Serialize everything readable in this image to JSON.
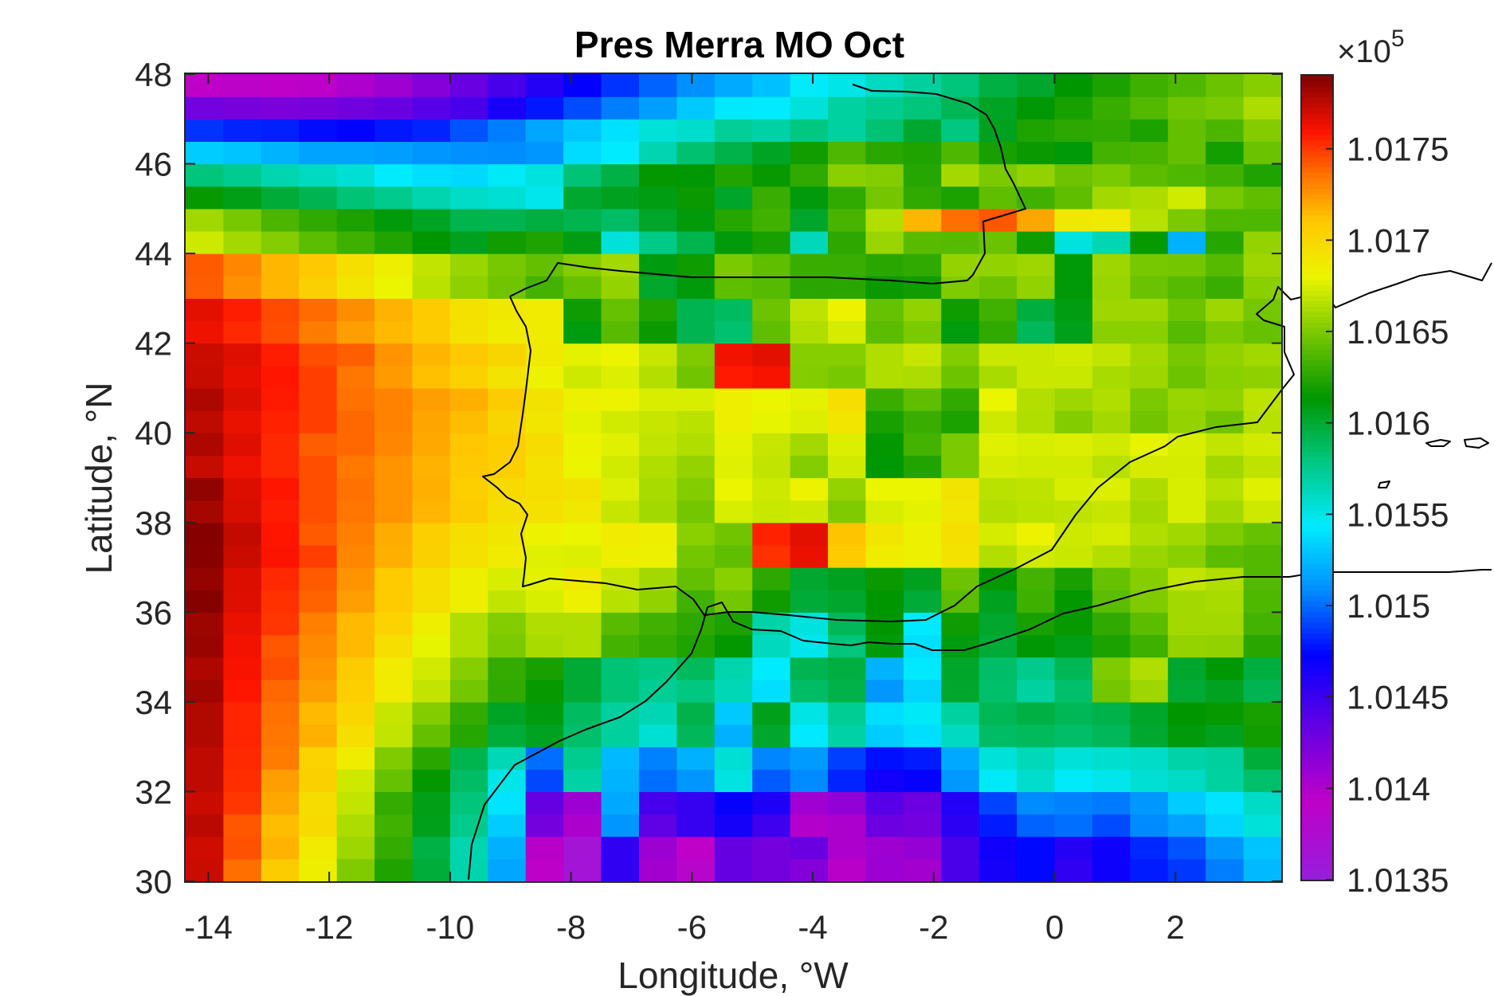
{
  "chart_data": {
    "type": "heatmap",
    "title": "Pres Merra MO Oct",
    "xlabel": "Longitude, °W",
    "ylabel": "Latitude, °N",
    "xlim": [
      -14.375,
      3.75
    ],
    "ylim": [
      30,
      48
    ],
    "grid": false,
    "xticks": [
      -14,
      -12,
      -10,
      -8,
      -6,
      -4,
      -2,
      0,
      2
    ],
    "xtick_labels": [
      "-14",
      "-12",
      "-10",
      "-8",
      "-6",
      "-4",
      "-2",
      "0",
      "2"
    ],
    "yticks": [
      30,
      32,
      34,
      36,
      38,
      40,
      42,
      44,
      46,
      48
    ],
    "ytick_labels": [
      "30",
      "32",
      "34",
      "36",
      "38",
      "40",
      "42",
      "44",
      "46",
      "48"
    ],
    "colorbar": {
      "colormap": "jet-like (purple-blue-cyan-green-yellow-red-dark red)",
      "range": [
        1.0135,
        1.0179
      ],
      "ticks": [
        1.0135,
        1.014,
        1.0145,
        1.015,
        1.0155,
        1.016,
        1.0165,
        1.017,
        1.0175
      ],
      "tick_labels": [
        "1.0135",
        "1.014",
        "1.0145",
        "1.015",
        "1.0155",
        "1.016",
        "1.0165",
        "1.017",
        "1.0175"
      ],
      "multiplier_base": "×10",
      "multiplier_exp": "5"
    },
    "grid_spec": {
      "lon_start": -14.375,
      "lon_step": 0.625,
      "ncols": 29,
      "lat_start": 30,
      "lat_step": 0.5,
      "nrows": 36
    },
    "values_rows_south_to_north": [
      [
        1.01772,
        1.01737,
        1.01708,
        1.01684,
        1.01651,
        1.01623,
        1.01598,
        1.01567,
        1.01518,
        1.01393,
        1.01364,
        1.01455,
        1.01406,
        1.01387,
        1.01433,
        1.01426,
        1.0142,
        1.01396,
        1.01409,
        1.01406,
        1.01444,
        1.01465,
        1.01475,
        1.01455,
        1.01468,
        1.0148,
        1.01487,
        1.01505,
        1.01525
      ],
      [
        1.01771,
        1.01744,
        1.01717,
        1.01687,
        1.01659,
        1.01629,
        1.01595,
        1.01566,
        1.01522,
        1.01396,
        1.01365,
        1.01455,
        1.01409,
        1.01394,
        1.01433,
        1.01426,
        1.01431,
        1.01401,
        1.01408,
        1.01412,
        1.01444,
        1.01467,
        1.01475,
        1.01459,
        1.01468,
        1.01483,
        1.01494,
        1.01513,
        1.01529
      ],
      [
        1.01776,
        1.01743,
        1.01714,
        1.01698,
        1.01663,
        1.01633,
        1.01607,
        1.01576,
        1.01532,
        1.01426,
        1.01402,
        1.01512,
        1.01436,
        1.01452,
        1.01465,
        1.01449,
        1.01399,
        1.01402,
        1.0143,
        1.01427,
        1.01456,
        1.0148,
        1.01498,
        1.01501,
        1.01492,
        1.01508,
        1.01516,
        1.01535,
        1.01554
      ],
      [
        1.01772,
        1.01751,
        1.0172,
        1.01697,
        1.01669,
        1.01629,
        1.01608,
        1.01581,
        1.01541,
        1.01433,
        1.01409,
        1.01519,
        1.01446,
        1.01452,
        1.01471,
        1.01461,
        1.01407,
        1.01414,
        1.01439,
        1.0143,
        1.0146,
        1.0149,
        1.01508,
        1.01506,
        1.01504,
        1.01513,
        1.01532,
        1.01541,
        1.0156
      ],
      [
        1.01775,
        1.01753,
        1.01723,
        1.01705,
        1.01672,
        1.01644,
        1.01615,
        1.01587,
        1.0155,
        1.01491,
        1.01569,
        1.01523,
        1.01501,
        1.01512,
        1.01552,
        1.01496,
        1.01508,
        1.01482,
        1.01467,
        1.01471,
        1.01513,
        1.01546,
        1.01558,
        1.01545,
        1.01549,
        1.01556,
        1.0156,
        1.0157,
        1.01585
      ],
      [
        1.01775,
        1.01754,
        1.01733,
        1.01703,
        1.01686,
        1.01651,
        1.01626,
        1.01593,
        1.01564,
        1.01501,
        1.01575,
        1.01525,
        1.01506,
        1.01522,
        1.01556,
        1.01507,
        1.01514,
        1.01489,
        1.01477,
        1.0148,
        1.01519,
        1.01554,
        1.01563,
        1.01554,
        1.01557,
        1.01559,
        1.01568,
        1.01571,
        1.01598
      ],
      [
        1.01778,
        1.01755,
        1.01735,
        1.01718,
        1.01696,
        1.01669,
        1.01643,
        1.01625,
        1.01598,
        1.01605,
        1.01585,
        1.01571,
        1.01556,
        1.0159,
        1.01522,
        1.01602,
        1.01543,
        1.01569,
        1.01532,
        1.01539,
        1.01561,
        1.01587,
        1.01589,
        1.01586,
        1.0159,
        1.01601,
        1.01611,
        1.01606,
        1.01619
      ],
      [
        1.01778,
        1.01755,
        1.01736,
        1.01715,
        1.01701,
        1.0167,
        1.01652,
        1.01629,
        1.01604,
        1.0161,
        1.01588,
        1.01571,
        1.01565,
        1.01594,
        1.01531,
        1.01607,
        1.01551,
        1.01574,
        1.01539,
        1.01546,
        1.0157,
        1.01591,
        1.01596,
        1.01591,
        1.01594,
        1.01603,
        1.01614,
        1.01616,
        1.01621
      ],
      [
        1.01782,
        1.01759,
        1.01739,
        1.01723,
        1.01707,
        1.01687,
        1.01669,
        1.01648,
        1.01628,
        1.01616,
        1.016,
        1.01582,
        1.01574,
        1.01579,
        1.01564,
        1.01539,
        1.01587,
        1.01594,
        1.01513,
        1.01535,
        1.01602,
        1.01585,
        1.0157,
        1.01585,
        1.01648,
        1.01659,
        1.016,
        1.01605,
        1.01592
      ],
      [
        1.01779,
        1.01761,
        1.01745,
        1.01726,
        1.01708,
        1.01687,
        1.01673,
        1.01653,
        1.01629,
        1.01621,
        1.016,
        1.01582,
        1.01578,
        1.01589,
        1.01567,
        1.01544,
        1.01592,
        1.01597,
        1.01523,
        1.01543,
        1.01603,
        1.01586,
        1.01576,
        1.01591,
        1.01651,
        1.01664,
        1.01602,
        1.01613,
        1.01597
      ],
      [
        1.01784,
        1.01762,
        1.01743,
        1.01729,
        1.01715,
        1.01696,
        1.01679,
        1.01664,
        1.0165,
        1.01662,
        1.01664,
        1.01634,
        1.01629,
        1.01623,
        1.01615,
        1.01562,
        1.01549,
        1.01581,
        1.01611,
        1.01539,
        1.0161,
        1.01599,
        1.01613,
        1.01608,
        1.01622,
        1.01632,
        1.01657,
        1.01656,
        1.01626
      ],
      [
        1.01783,
        1.01764,
        1.01751,
        1.01732,
        1.01715,
        1.01703,
        1.01685,
        1.01664,
        1.01652,
        1.01664,
        1.01664,
        1.0164,
        1.01633,
        1.01627,
        1.01622,
        1.01568,
        1.01553,
        1.0159,
        1.01614,
        1.01543,
        1.01618,
        1.01602,
        1.01621,
        1.01616,
        1.01628,
        1.01641,
        1.01661,
        1.01661,
        1.01634
      ],
      [
        1.01789,
        1.01767,
        1.01752,
        1.0174,
        1.01723,
        1.01709,
        1.01695,
        1.01684,
        1.01669,
        1.01675,
        1.01683,
        1.01666,
        1.01656,
        1.01633,
        1.01648,
        1.01618,
        1.01599,
        1.01602,
        1.01614,
        1.01599,
        1.01641,
        1.01606,
        1.01632,
        1.01615,
        1.01641,
        1.01651,
        1.01661,
        1.01662,
        1.01637
      ],
      [
        1.01785,
        1.01768,
        1.01754,
        1.01742,
        1.01726,
        1.01709,
        1.01696,
        1.01685,
        1.01675,
        1.01678,
        1.01688,
        1.0167,
        1.01661,
        1.01643,
        1.01654,
        1.01627,
        1.01601,
        1.01606,
        1.01617,
        1.01606,
        1.01646,
        1.01615,
        1.01634,
        1.01621,
        1.01644,
        1.01653,
        1.01669,
        1.01664,
        1.01638
      ],
      [
        1.01788,
        1.01772,
        1.0176,
        1.01749,
        1.0173,
        1.01718,
        1.01705,
        1.01694,
        1.01687,
        1.01677,
        1.01676,
        1.01684,
        1.01683,
        1.01648,
        1.01642,
        1.01752,
        1.01764,
        1.01709,
        1.01686,
        1.01683,
        1.01693,
        1.01665,
        1.01673,
        1.01671,
        1.01665,
        1.01658,
        1.01654,
        1.01641,
        1.01638
      ],
      [
        1.01789,
        1.01774,
        1.01759,
        1.01742,
        1.01732,
        1.01719,
        1.01706,
        1.01696,
        1.0169,
        1.01682,
        1.0168,
        1.01687,
        1.01684,
        1.01654,
        1.01647,
        1.01756,
        1.01766,
        1.01712,
        1.0169,
        1.01683,
        1.01695,
        1.01674,
        1.01682,
        1.01672,
        1.01674,
        1.01664,
        1.0166,
        1.01651,
        1.01644
      ],
      [
        1.01781,
        1.01769,
        1.01757,
        1.01745,
        1.01735,
        1.01726,
        1.01716,
        1.01708,
        1.01695,
        1.01694,
        1.01689,
        1.0167,
        1.01661,
        1.01648,
        1.01675,
        1.01671,
        1.01672,
        1.01651,
        1.01675,
        1.01678,
        1.0169,
        1.01665,
        1.01667,
        1.01668,
        1.0167,
        1.01661,
        1.01675,
        1.01661,
        1.01672
      ],
      [
        1.01786,
        1.01768,
        1.01759,
        1.01745,
        1.01736,
        1.01726,
        1.01718,
        1.01707,
        1.01698,
        1.01695,
        1.01693,
        1.01676,
        1.01662,
        1.01652,
        1.01681,
        1.01672,
        1.01682,
        1.01657,
        1.0168,
        1.0168,
        1.01692,
        1.01667,
        1.01668,
        1.01675,
        1.01676,
        1.01663,
        1.01675,
        1.01666,
        1.01677
      ],
      [
        1.01773,
        1.01763,
        1.01754,
        1.01745,
        1.01734,
        1.01726,
        1.01717,
        1.0171,
        1.01706,
        1.01694,
        1.0168,
        1.01673,
        1.01664,
        1.01657,
        1.01677,
        1.01669,
        1.01652,
        1.01673,
        1.01613,
        1.01624,
        1.0165,
        1.01674,
        1.01673,
        1.01673,
        1.01666,
        1.01674,
        1.01674,
        1.0166,
        1.01668
      ],
      [
        1.01779,
        1.01767,
        1.01754,
        1.01741,
        1.01739,
        1.0173,
        1.0172,
        1.01711,
        1.01707,
        1.01697,
        1.01682,
        1.01677,
        1.01669,
        1.01664,
        1.01678,
        1.0167,
        1.01661,
        1.01676,
        1.01615,
        1.01634,
        1.0165,
        1.01677,
        1.01675,
        1.01676,
        1.01673,
        1.01679,
        1.01675,
        1.01669,
        1.01673
      ],
      [
        1.01775,
        1.01764,
        1.01756,
        1.01749,
        1.01739,
        1.01731,
        1.01721,
        1.01714,
        1.01702,
        1.0169,
        1.01678,
        1.01673,
        1.0167,
        1.01667,
        1.01684,
        1.01679,
        1.01676,
        1.01691,
        1.01621,
        1.01631,
        1.01622,
        1.01672,
        1.01664,
        1.01652,
        1.01661,
        1.01647,
        1.01657,
        1.01647,
        1.01666
      ],
      [
        1.01779,
        1.01768,
        1.01758,
        1.01749,
        1.01736,
        1.01731,
        1.01723,
        1.01718,
        1.01708,
        1.01693,
        1.01683,
        1.01682,
        1.01675,
        1.01675,
        1.01684,
        1.0168,
        1.01678,
        1.01696,
        1.01631,
        1.01642,
        1.01628,
        1.0168,
        1.01665,
        1.01659,
        1.01664,
        1.0165,
        1.01658,
        1.01656,
        1.01668
      ],
      [
        1.01773,
        1.01765,
        1.01759,
        1.01749,
        1.01735,
        1.01724,
        1.01713,
        1.01704,
        1.01692,
        1.01682,
        1.01672,
        1.01676,
        1.01665,
        1.01647,
        1.01758,
        1.01761,
        1.01652,
        1.01649,
        1.01664,
        1.01663,
        1.01646,
        1.01662,
        1.01671,
        1.01671,
        1.01662,
        1.01659,
        1.01646,
        1.01654,
        1.01655
      ],
      [
        1.01772,
        1.01767,
        1.01757,
        1.01745,
        1.01741,
        1.01726,
        1.01716,
        1.0171,
        1.01702,
        1.01688,
        1.01678,
        1.01681,
        1.0167,
        1.01651,
        1.01762,
        1.01766,
        1.01653,
        1.01653,
        1.01664,
        1.0167,
        1.01652,
        1.01671,
        1.01671,
        1.01673,
        1.01669,
        1.01661,
        1.01649,
        1.01656,
        1.0166
      ],
      [
        1.01763,
        1.01754,
        1.01745,
        1.01733,
        1.01723,
        1.01715,
        1.01708,
        1.01693,
        1.01686,
        1.01686,
        1.0161,
        1.0164,
        1.01617,
        1.01592,
        1.01584,
        1.01642,
        1.01664,
        1.01674,
        1.01641,
        1.0165,
        1.0161,
        1.01628,
        1.0159,
        1.01607,
        1.01654,
        1.01654,
        1.01639,
        1.0165,
        1.01644
      ],
      [
        1.01766,
        1.01757,
        1.01746,
        1.01738,
        1.01728,
        1.01717,
        1.01709,
        1.01694,
        1.01689,
        1.01687,
        1.01618,
        1.01644,
        1.01623,
        1.01592,
        1.01588,
        1.01646,
        1.01668,
        1.01682,
        1.01644,
        1.01656,
        1.01618,
        1.01633,
        1.01597,
        1.01609,
        1.01659,
        1.01659,
        1.01646,
        1.01659,
        1.01648
      ],
      [
        1.01741,
        1.01727,
        1.01716,
        1.01705,
        1.01691,
        1.0168,
        1.01667,
        1.01655,
        1.01647,
        1.01634,
        1.01644,
        1.01657,
        1.01602,
        1.01611,
        1.01642,
        1.01639,
        1.01626,
        1.01626,
        1.01617,
        1.01619,
        1.01651,
        1.01646,
        1.01656,
        1.01612,
        1.01658,
        1.01645,
        1.01639,
        1.01631,
        1.01654
      ],
      [
        1.01742,
        1.0173,
        1.01716,
        1.0171,
        1.01695,
        1.01684,
        1.01669,
        1.01658,
        1.01649,
        1.01643,
        1.01652,
        1.01661,
        1.0161,
        1.01618,
        1.0165,
        1.01642,
        1.01631,
        1.01631,
        1.01626,
        1.01628,
        1.01657,
        1.01656,
        1.01659,
        1.01612,
        1.01659,
        1.01649,
        1.01648,
        1.01639,
        1.01659
      ],
      [
        1.01672,
        1.01661,
        1.01652,
        1.01641,
        1.01632,
        1.01624,
        1.01614,
        1.01606,
        1.01619,
        1.01623,
        1.01609,
        1.01554,
        1.01577,
        1.01593,
        1.01611,
        1.01621,
        1.01563,
        1.01627,
        1.01658,
        1.0164,
        1.01639,
        1.01645,
        1.01618,
        1.01553,
        1.01565,
        1.01616,
        1.01522,
        1.01625,
        1.01657
      ],
      [
        1.0166,
        1.01649,
        1.01636,
        1.01628,
        1.01622,
        1.01611,
        1.01604,
        1.01593,
        1.01592,
        1.01597,
        1.01593,
        1.01587,
        1.01603,
        1.01611,
        1.01625,
        1.01633,
        1.01603,
        1.01635,
        1.01665,
        1.01716,
        1.01737,
        1.01743,
        1.01721,
        1.01689,
        1.01688,
        1.01666,
        1.0165,
        1.01637,
        1.01637
      ],
      [
        1.01616,
        1.01608,
        1.01599,
        1.01592,
        1.01582,
        1.01576,
        1.01566,
        1.01559,
        1.01556,
        1.01549,
        1.01601,
        1.01606,
        1.01609,
        1.01617,
        1.01603,
        1.01631,
        1.01611,
        1.01628,
        1.01648,
        1.01628,
        1.01622,
        1.01642,
        1.01633,
        1.01642,
        1.01661,
        1.01663,
        1.01673,
        1.01649,
        1.01642
      ],
      [
        1.01581,
        1.01575,
        1.01566,
        1.01561,
        1.01556,
        1.01544,
        1.01539,
        1.01537,
        1.01546,
        1.01553,
        1.01582,
        1.01595,
        1.01615,
        1.01613,
        1.01624,
        1.01616,
        1.01628,
        1.01654,
        1.01652,
        1.01625,
        1.01661,
        1.0165,
        1.01656,
        1.01646,
        1.0165,
        1.01641,
        1.01637,
        1.01633,
        1.01623
      ],
      [
        1.01532,
        1.01529,
        1.01523,
        1.01517,
        1.01517,
        1.01515,
        1.01512,
        1.0151,
        1.01509,
        1.01512,
        1.01538,
        1.01544,
        1.01566,
        1.01584,
        1.01594,
        1.01604,
        1.01619,
        1.01637,
        1.01626,
        1.01623,
        1.01637,
        1.01621,
        1.01617,
        1.01612,
        1.01634,
        1.01635,
        1.01643,
        1.0162,
        1.01645
      ],
      [
        1.01486,
        1.01482,
        1.01481,
        1.01476,
        1.01474,
        1.01479,
        1.01482,
        1.01494,
        1.01505,
        1.01518,
        1.0153,
        1.0154,
        1.01554,
        1.01558,
        1.01573,
        1.01569,
        1.01579,
        1.0157,
        1.01583,
        1.01601,
        1.01579,
        1.01606,
        1.01623,
        1.01627,
        1.01628,
        1.01622,
        1.01643,
        1.01636,
        1.01652
      ],
      [
        1.01427,
        1.01425,
        1.01423,
        1.01425,
        1.01428,
        1.01432,
        1.01439,
        1.01445,
        1.01464,
        1.01479,
        1.01492,
        1.01505,
        1.01515,
        1.01531,
        1.01543,
        1.01544,
        1.01554,
        1.0157,
        1.01575,
        1.01581,
        1.01591,
        1.01604,
        1.01613,
        1.01621,
        1.0163,
        1.01638,
        1.01647,
        1.0165,
        1.01663
      ],
      [
        1.01394,
        1.01392,
        1.01394,
        1.01395,
        1.01401,
        1.01408,
        1.01419,
        1.01432,
        1.01445,
        1.01459,
        1.01472,
        1.01486,
        1.01498,
        1.0151,
        1.0152,
        1.01528,
        1.01545,
        1.0155,
        1.01561,
        1.01571,
        1.01581,
        1.01596,
        1.01602,
        1.01614,
        1.01622,
        1.01632,
        1.01637,
        1.01645,
        1.01653
      ]
    ]
  }
}
